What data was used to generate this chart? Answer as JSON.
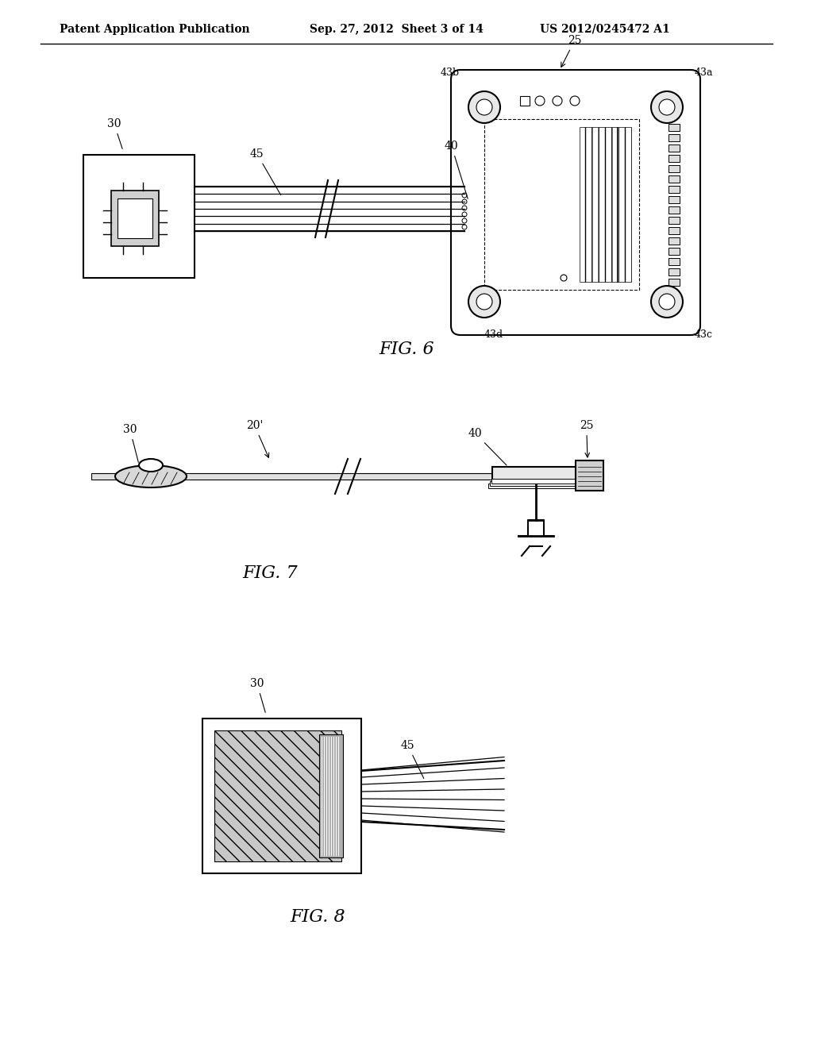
{
  "title_left": "Patent Application Publication",
  "title_mid": "Sep. 27, 2012  Sheet 3 of 14",
  "title_right": "US 2012/0245472 A1",
  "fig6_label": "FIG. 6",
  "fig7_label": "FIG. 7",
  "fig8_label": "FIG. 8",
  "bg_color": "#ffffff",
  "line_color": "#000000",
  "gray_light": "#cccccc",
  "gray_mid": "#888888"
}
